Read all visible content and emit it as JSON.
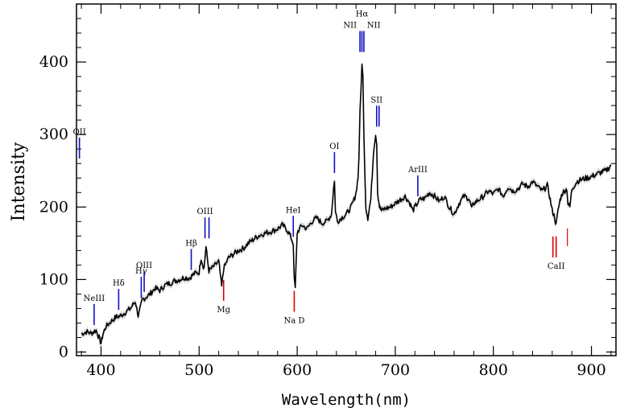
{
  "chart_data": {
    "type": "line",
    "title": "",
    "xlabel": "Wavelength(nm)",
    "ylabel": "Intensity",
    "xlim": [
      375,
      925
    ],
    "ylim": [
      -5,
      480
    ],
    "xticks": [
      400,
      500,
      600,
      700,
      800,
      900
    ],
    "yticks": [
      0,
      100,
      200,
      300,
      400
    ],
    "grid": false,
    "colors": {
      "emission": "#1010c0",
      "absorption": "#e00000",
      "spectrum": "#000000",
      "error_band": "#b0b0b0"
    },
    "series": [
      {
        "x": [
          380,
          385,
          390,
          395,
          398,
          400,
          402,
          405,
          410,
          415,
          420,
          425,
          430,
          435,
          438,
          440,
          442,
          445,
          450,
          455,
          460,
          465,
          470,
          475,
          480,
          485,
          490,
          495,
          500,
          502,
          505,
          507,
          510,
          515,
          520,
          523,
          525,
          530,
          535,
          540,
          545,
          550,
          555,
          560,
          565,
          570,
          575,
          580,
          585,
          590,
          593,
          596,
          597,
          598,
          600,
          605,
          610,
          615,
          620,
          625,
          630,
          635,
          637,
          638,
          639,
          641,
          645,
          650,
          655,
          658,
          660,
          662,
          663,
          664,
          665,
          666,
          667,
          668,
          669,
          670,
          672,
          675,
          678,
          680,
          681,
          682,
          684,
          686,
          690,
          695,
          700,
          705,
          710,
          715,
          718,
          720,
          725,
          730,
          735,
          740,
          745,
          750,
          755,
          760,
          765,
          770,
          775,
          778,
          780,
          785,
          790,
          795,
          800,
          805,
          810,
          815,
          820,
          825,
          830,
          835,
          840,
          845,
          850,
          855,
          858,
          860,
          862,
          864,
          865,
          866,
          868,
          870,
          872,
          875,
          876,
          878,
          880,
          885,
          890,
          895,
          900,
          905,
          910,
          915,
          920
        ],
        "y": [
          25,
          28,
          26,
          30,
          20,
          12,
          25,
          35,
          42,
          48,
          50,
          55,
          60,
          70,
          50,
          60,
          72,
          75,
          80,
          88,
          85,
          92,
          95,
          98,
          100,
          103,
          102,
          108,
          110,
          130,
          115,
          145,
          112,
          118,
          125,
          90,
          115,
          130,
          135,
          140,
          143,
          150,
          155,
          160,
          163,
          165,
          167,
          170,
          175,
          168,
          160,
          150,
          100,
          88,
          165,
          175,
          170,
          180,
          185,
          178,
          180,
          190,
          225,
          235,
          195,
          180,
          185,
          190,
          200,
          210,
          220,
          240,
          270,
          330,
          360,
          400,
          380,
          300,
          250,
          200,
          185,
          210,
          280,
          300,
          290,
          220,
          200,
          195,
          198,
          200,
          205,
          210,
          215,
          205,
          195,
          200,
          210,
          212,
          220,
          215,
          208,
          215,
          200,
          190,
          205,
          215,
          212,
          198,
          205,
          210,
          215,
          222,
          218,
          225,
          215,
          228,
          222,
          225,
          232,
          228,
          235,
          228,
          222,
          230,
          210,
          195,
          188,
          175,
          185,
          195,
          210,
          218,
          222,
          225,
          205,
          200,
          225,
          235,
          238,
          240,
          242,
          245,
          248,
          250,
          258
        ]
      }
    ],
    "annotations": [
      {
        "label": "OII",
        "wavelength": 378,
        "kind": "emission"
      },
      {
        "label": "NeIII",
        "wavelength": 393,
        "kind": "emission"
      },
      {
        "label": "Hδ",
        "wavelength": 418,
        "kind": "emission"
      },
      {
        "label": "Hγ",
        "wavelength": 441,
        "kind": "emission"
      },
      {
        "label": "OIII",
        "wavelength": 444,
        "kind": "emission"
      },
      {
        "label": "Hβ",
        "wavelength": 492,
        "kind": "emission"
      },
      {
        "label": "OIII",
        "wavelength": 506,
        "kind": "emission"
      },
      {
        "label": "HeI",
        "wavelength": 596,
        "kind": "emission"
      },
      {
        "label": "OI",
        "wavelength": 638,
        "kind": "emission"
      },
      {
        "label": "NII",
        "wavelength": 664,
        "kind": "emission"
      },
      {
        "label": "Hα",
        "wavelength": 666,
        "kind": "emission"
      },
      {
        "label": "NII",
        "wavelength": 668,
        "kind": "emission"
      },
      {
        "label": "SII",
        "wavelength": 681,
        "kind": "emission"
      },
      {
        "label": "ArIII",
        "wavelength": 723,
        "kind": "emission"
      },
      {
        "label": "Mg",
        "wavelength": 525,
        "kind": "absorption"
      },
      {
        "label": "Na D",
        "wavelength": 597,
        "kind": "absorption"
      },
      {
        "label": "CaII",
        "wavelength": 864,
        "kind": "absorption"
      }
    ]
  }
}
